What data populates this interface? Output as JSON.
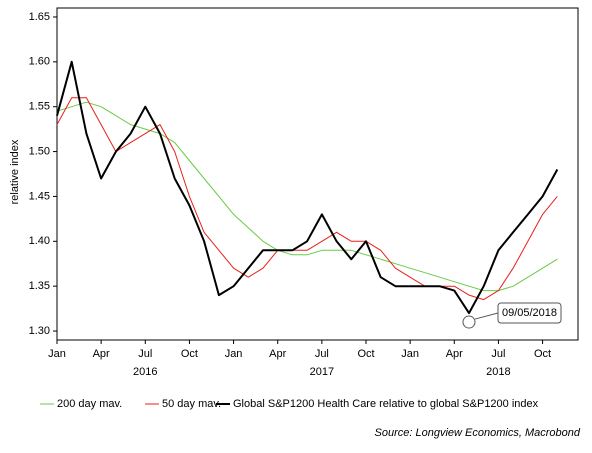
{
  "chart_data": {
    "type": "line",
    "y_label": "relative index",
    "x": [
      "2016-01",
      "2016-02",
      "2016-03",
      "2016-04",
      "2016-05",
      "2016-06",
      "2016-07",
      "2016-08",
      "2016-09",
      "2016-10",
      "2016-11",
      "2016-12",
      "2017-01",
      "2017-02",
      "2017-03",
      "2017-04",
      "2017-05",
      "2017-06",
      "2017-07",
      "2017-08",
      "2017-09",
      "2017-10",
      "2017-11",
      "2017-12",
      "2018-01",
      "2018-02",
      "2018-03",
      "2018-04",
      "2018-05",
      "2018-06",
      "2018-07",
      "2018-08",
      "2018-09",
      "2018-10",
      "2018-11"
    ],
    "xlim": [
      "2016-01",
      "2018-12"
    ],
    "xticks": [
      {
        "value": "2016-01",
        "label": "Jan"
      },
      {
        "value": "2016-04",
        "label": "Apr"
      },
      {
        "value": "2016-07",
        "label": "Jul"
      },
      {
        "value": "2016-10",
        "label": "Oct"
      },
      {
        "value": "2017-01",
        "label": "Jan"
      },
      {
        "value": "2017-04",
        "label": "Apr"
      },
      {
        "value": "2017-07",
        "label": "Jul"
      },
      {
        "value": "2017-10",
        "label": "Oct"
      },
      {
        "value": "2018-01",
        "label": "Jan"
      },
      {
        "value": "2018-04",
        "label": "Apr"
      },
      {
        "value": "2018-07",
        "label": "Jul"
      },
      {
        "value": "2018-10",
        "label": "Oct"
      }
    ],
    "year_labels": [
      {
        "value": "2016-07",
        "label": "2016"
      },
      {
        "value": "2017-07",
        "label": "2017"
      },
      {
        "value": "2018-07",
        "label": "2018"
      }
    ],
    "ylim": [
      1.29,
      1.66
    ],
    "yticks": [
      {
        "value": 1.3,
        "label": "1.30"
      },
      1.35,
      {
        "value": 1.4,
        "label": "1.40"
      },
      1.45,
      {
        "value": 1.5,
        "label": "1.50"
      },
      1.55,
      {
        "value": 1.6,
        "label": "1.60"
      },
      1.65
    ],
    "series": [
      {
        "name": "200 day mav.",
        "color": "#66cc44",
        "values": [
          1.545,
          1.55,
          1.555,
          1.55,
          1.54,
          1.53,
          1.525,
          1.52,
          1.51,
          1.49,
          1.47,
          1.45,
          1.43,
          1.415,
          1.4,
          1.39,
          1.385,
          1.385,
          1.39,
          1.39,
          1.39,
          1.385,
          1.38,
          1.375,
          1.37,
          1.365,
          1.36,
          1.355,
          1.35,
          1.345,
          1.345,
          1.35,
          1.36,
          1.37,
          1.38
        ]
      },
      {
        "name": "50 day mav.",
        "color": "#e8201a",
        "values": [
          1.53,
          1.56,
          1.56,
          1.53,
          1.5,
          1.51,
          1.52,
          1.53,
          1.5,
          1.45,
          1.41,
          1.39,
          1.37,
          1.36,
          1.37,
          1.39,
          1.39,
          1.39,
          1.4,
          1.41,
          1.4,
          1.4,
          1.39,
          1.37,
          1.36,
          1.35,
          1.35,
          1.35,
          1.34,
          1.335,
          1.345,
          1.37,
          1.4,
          1.43,
          1.45
        ]
      },
      {
        "name": "Global S&P1200 Health Care relative to global S&P1200 index",
        "color": "#000000",
        "values": [
          1.54,
          1.6,
          1.52,
          1.47,
          1.5,
          1.52,
          1.55,
          1.52,
          1.47,
          1.44,
          1.4,
          1.34,
          1.35,
          1.37,
          1.39,
          1.39,
          1.39,
          1.4,
          1.43,
          1.4,
          1.38,
          1.4,
          1.36,
          1.35,
          1.35,
          1.35,
          1.35,
          1.345,
          1.32,
          1.35,
          1.39,
          1.41,
          1.43,
          1.45,
          1.48
        ]
      }
    ],
    "annotation": {
      "text": "09/05/2018",
      "x": "2018-05",
      "y": 1.31
    },
    "source": "Source: Longview Economics, Macrobond"
  }
}
